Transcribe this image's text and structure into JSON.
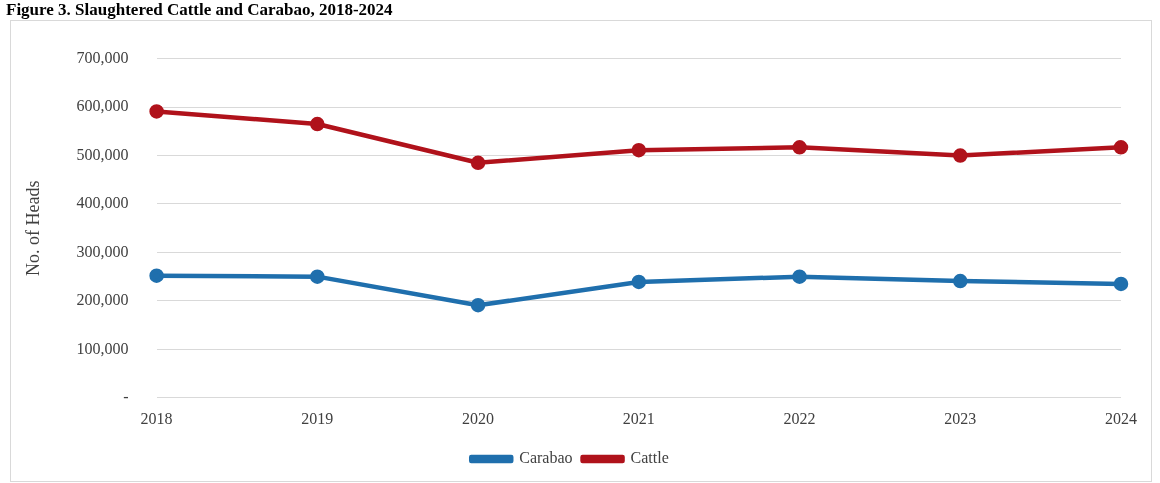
{
  "chart_data": {
    "type": "line",
    "title": "Figure 3. Slaughtered Cattle and Carabao, 2018-2024",
    "ylabel": "No. of Heads",
    "categories": [
      "2018",
      "2019",
      "2020",
      "2021",
      "2022",
      "2023",
      "2024"
    ],
    "series": [
      {
        "name": "Carabao",
        "color": "#1f6fad",
        "values": [
          252000,
          250000,
          191000,
          239000,
          250000,
          241000,
          235000
        ]
      },
      {
        "name": "Cattle",
        "color": "#b0121b",
        "values": [
          591000,
          565000,
          485000,
          511000,
          517000,
          500000,
          517000
        ]
      }
    ],
    "ylim": [
      0,
      700000
    ],
    "yticks": [
      {
        "value": 0,
        "label": "-"
      },
      {
        "value": 100000,
        "label": "100,000"
      },
      {
        "value": 200000,
        "label": "200,000"
      },
      {
        "value": 300000,
        "label": "300,000"
      },
      {
        "value": 400000,
        "label": "400,000"
      },
      {
        "value": 500000,
        "label": "500,000"
      },
      {
        "value": 600000,
        "label": "600,000"
      },
      {
        "value": 700000,
        "label": "700,000"
      }
    ],
    "grid": "y",
    "legend": "bottom",
    "marker": "circle",
    "line_style": "solid"
  }
}
